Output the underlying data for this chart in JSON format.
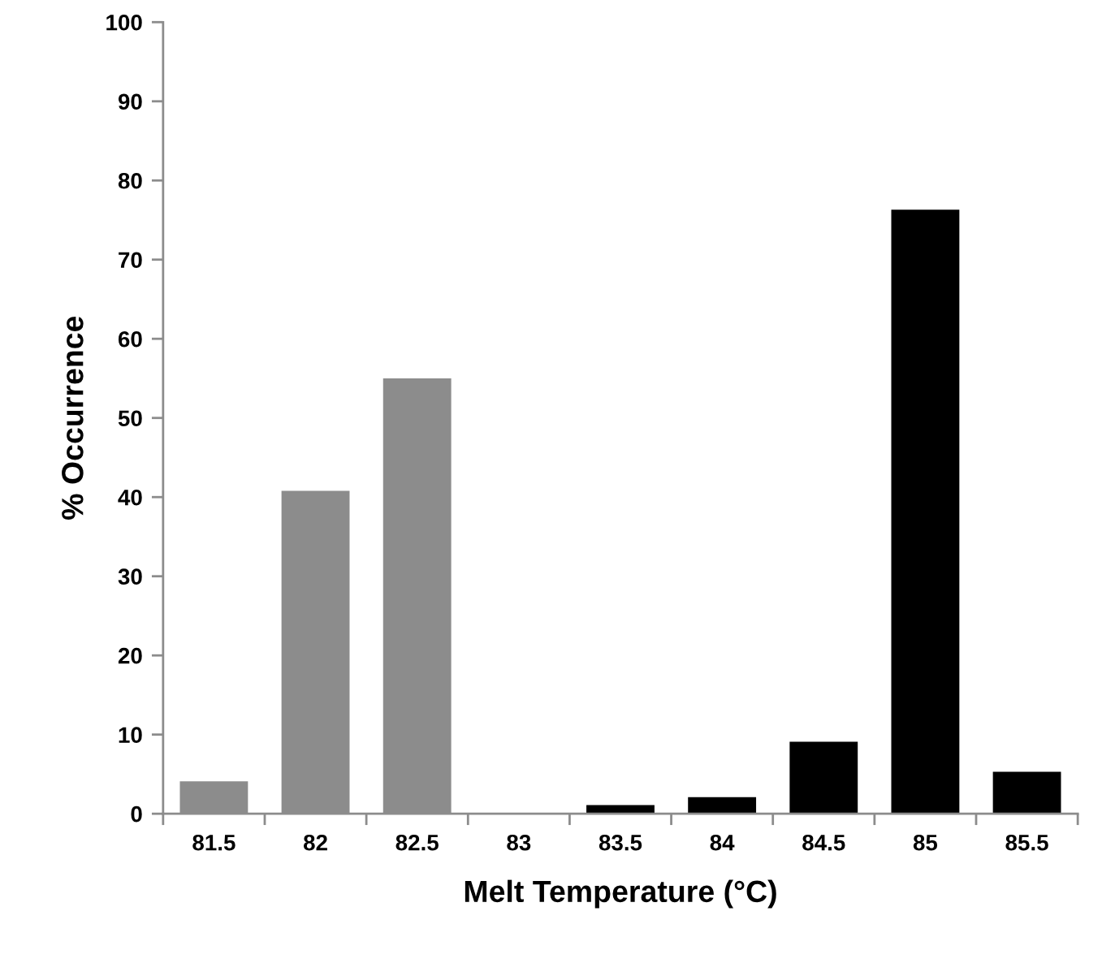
{
  "chart_data": {
    "type": "bar",
    "xlabel": "Melt Temperature (°C)",
    "ylabel": "% Occurrence",
    "categories": [
      "81.5",
      "82",
      "82.5",
      "83",
      "83.5",
      "84",
      "84.5",
      "85",
      "85.5"
    ],
    "values": [
      4.1,
      40.8,
      55.0,
      0,
      1.1,
      2.1,
      9.1,
      76.3,
      5.3
    ],
    "colors": [
      "#8c8c8c",
      "#8c8c8c",
      "#8c8c8c",
      "#000000",
      "#000000",
      "#000000",
      "#000000",
      "#000000",
      "#000000"
    ],
    "ylim": [
      0,
      100
    ],
    "yticks": [
      0,
      10,
      20,
      30,
      40,
      50,
      60,
      70,
      80,
      90,
      100
    ],
    "grid": false,
    "legend": false
  }
}
